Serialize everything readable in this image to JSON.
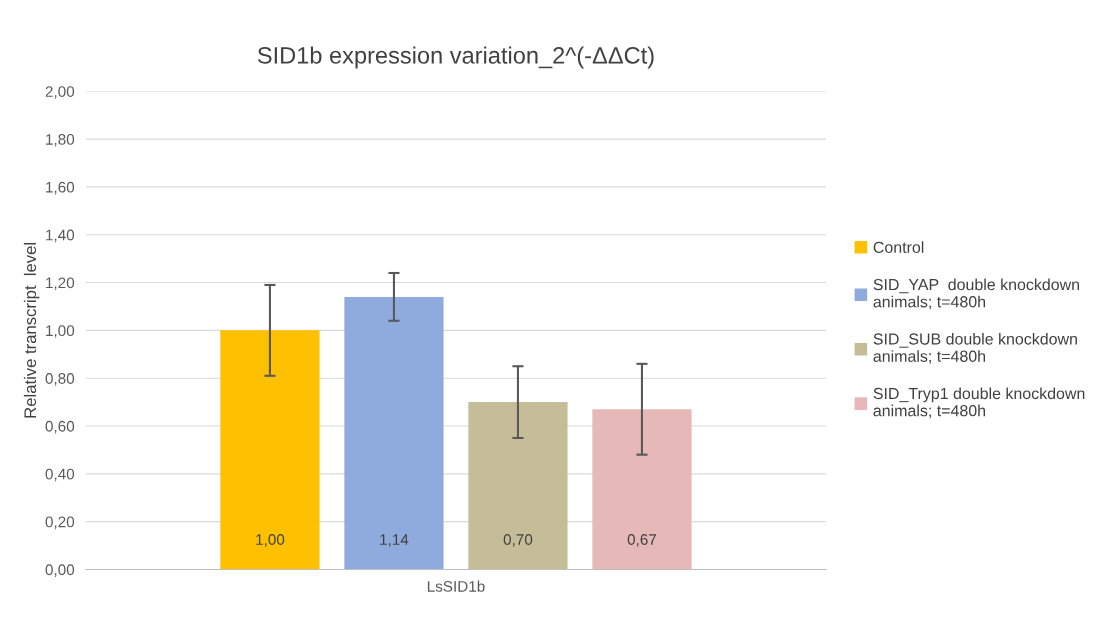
{
  "chart_data": {
    "type": "bar",
    "title": "SID1b expression variation_2^(-ΔΔCt)",
    "ylabel": "Relative transcript  level",
    "categories": [
      "LsSID1b"
    ],
    "series": [
      {
        "name": "Control",
        "color": "#ffc000",
        "values": [
          1.0
        ],
        "errors": [
          0.19
        ],
        "value_labels": [
          "1,00"
        ]
      },
      {
        "name": "SID_YAP  double knockdown animals; t=480h",
        "color": "#8faadc",
        "values": [
          1.14
        ],
        "errors": [
          0.1
        ],
        "value_labels": [
          "1,14"
        ]
      },
      {
        "name": "SID_SUB double knockdown animals; t=480h",
        "color": "#c5bd97",
        "values": [
          0.7
        ],
        "errors": [
          0.15
        ],
        "value_labels": [
          "0,70"
        ]
      },
      {
        "name": "SID_Tryp1 double knockdown animals; t=480h",
        "color": "#e6b8b7",
        "values": [
          0.67
        ],
        "errors": [
          0.19
        ],
        "value_labels": [
          "0,67"
        ]
      }
    ],
    "ylim": [
      0,
      2
    ],
    "yticks": [
      {
        "value": 0,
        "label": "0,00"
      },
      {
        "value": 0.2,
        "label": "0,20"
      },
      {
        "value": 0.4,
        "label": "0,40"
      },
      {
        "value": 0.6,
        "label": "0,60"
      },
      {
        "value": 0.8,
        "label": "0,80"
      },
      {
        "value": 1.0,
        "label": "1,00"
      },
      {
        "value": 1.2,
        "label": "1,20"
      },
      {
        "value": 1.4,
        "label": "1,40"
      },
      {
        "value": 1.6,
        "label": "1,60"
      },
      {
        "value": 1.8,
        "label": "1,80"
      },
      {
        "value": 2.0,
        "label": "2,00"
      }
    ],
    "grid": "y",
    "legend": "right"
  }
}
